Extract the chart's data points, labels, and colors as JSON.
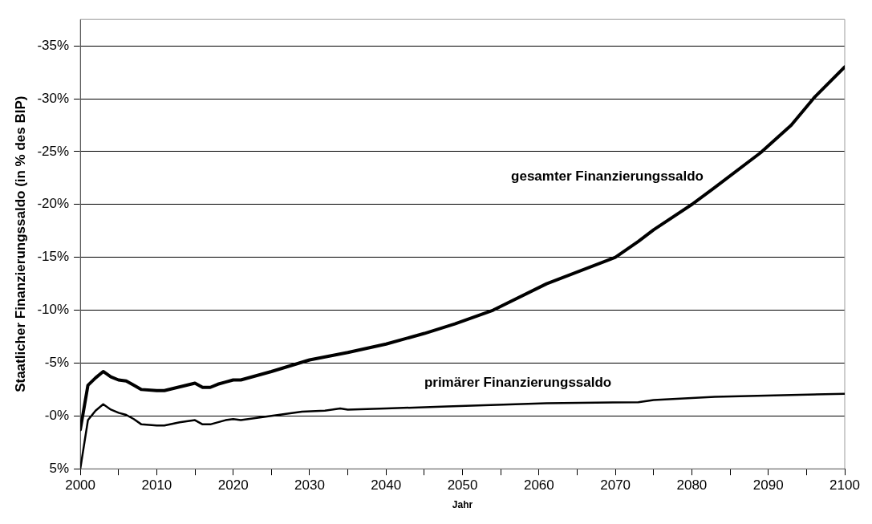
{
  "chart_data": {
    "type": "line",
    "xlabel": "Jahr",
    "ylabel": "Staatlicher Finanzierungssaldo (in % des BIP)",
    "xlim": [
      2000,
      2100
    ],
    "xticks": [
      2000,
      {
        "value": 2005,
        "label": null
      },
      2010,
      {
        "value": 2015,
        "label": null
      },
      2020,
      {
        "value": 2025,
        "label": null
      },
      2030,
      {
        "value": 2035,
        "label": null
      },
      2040,
      {
        "value": 2045,
        "label": null
      },
      2050,
      {
        "value": 2055,
        "label": null
      },
      2060,
      {
        "value": 2065,
        "label": null
      },
      2070,
      {
        "value": 2075,
        "label": null
      },
      2080,
      {
        "value": 2085,
        "label": null
      },
      2090,
      {
        "value": 2095,
        "label": null
      },
      2100
    ],
    "ylim": [
      5,
      -37.5
    ],
    "yticks": [
      {
        "value": 5,
        "label": "5%"
      },
      {
        "value": 0,
        "label": "-0%"
      },
      {
        "value": -5,
        "label": "-5%"
      },
      {
        "value": -10,
        "label": "-10%"
      },
      {
        "value": -15,
        "label": "-15%"
      },
      {
        "value": -20,
        "label": "-20%"
      },
      {
        "value": -25,
        "label": "-25%"
      },
      {
        "value": -30,
        "label": "-30%"
      },
      {
        "value": -35,
        "label": "-35%"
      }
    ],
    "grid": "y",
    "legend": false,
    "marker": "none",
    "line_style": "solid",
    "series": [
      {
        "name": "gesamter Finanzierungssaldo",
        "color": "#000000",
        "x": [
          2000,
          2001,
          2002,
          2003,
          2004,
          2005,
          2006,
          2007,
          2008,
          2010,
          2011,
          2015,
          2016,
          2017,
          2018,
          2019,
          2020,
          2021,
          2025,
          2030,
          2035,
          2040,
          2045,
          2049,
          2054,
          2061,
          2070,
          2073,
          2075,
          2080,
          2083,
          2089,
          2093,
          2096,
          2100
        ],
        "values": [
          1.3,
          -2.9,
          -3.6,
          -4.2,
          -3.7,
          -3.4,
          -3.3,
          -2.9,
          -2.5,
          -2.4,
          -2.4,
          -3.1,
          -2.7,
          -2.7,
          -3.0,
          -3.2,
          -3.4,
          -3.4,
          -4.2,
          -5.3,
          -6.0,
          -6.8,
          -7.8,
          -8.7,
          -10.0,
          -12.5,
          -15.0,
          -16.5,
          -17.6,
          -20.0,
          -21.6,
          -24.9,
          -27.5,
          -30.1,
          -33.0
        ]
      },
      {
        "name": "primärer Finanzierungssaldo",
        "color": "#000000",
        "x": [
          2000,
          2001,
          2002,
          2003,
          2004,
          2005,
          2006,
          2007,
          2008,
          2010,
          2011,
          2013,
          2015,
          2016,
          2017,
          2019,
          2020,
          2021,
          2025,
          2029,
          2032,
          2034,
          2035,
          2040,
          2048,
          2061,
          2073,
          2075,
          2083,
          2100
        ],
        "values": [
          5,
          0.4,
          -0.5,
          -1.1,
          -0.6,
          -0.3,
          -0.1,
          0.3,
          0.8,
          0.9,
          0.9,
          0.6,
          0.4,
          0.8,
          0.8,
          0.4,
          0.3,
          0.4,
          0.0,
          -0.4,
          -0.5,
          -0.7,
          -0.6,
          -0.7,
          -0.9,
          -1.2,
          -1.3,
          -1.5,
          -1.8,
          -2.1
        ]
      }
    ]
  }
}
